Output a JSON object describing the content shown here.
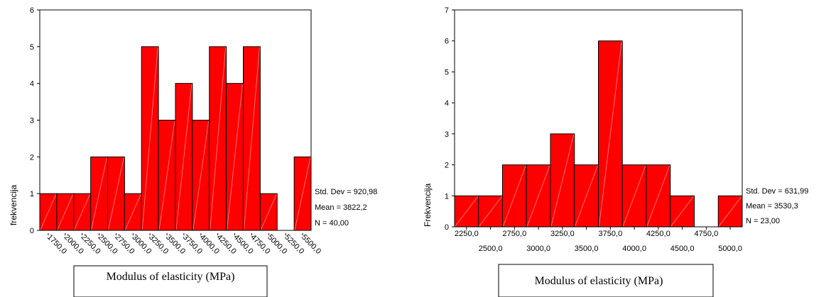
{
  "colors": {
    "bar_fill": "#ff0000",
    "bar_stroke": "#000000",
    "hatch": "#ff8a8a"
  },
  "chart_data": [
    {
      "type": "bar",
      "subtype": "histogram",
      "categories": [
        "1750,0",
        "2000,0",
        "2250,0",
        "2500,0",
        "2750,0",
        "3000,0",
        "3250,0",
        "3500,0",
        "3750,0",
        "4000,0",
        "4250,0",
        "4500,0",
        "4750,0",
        "5000,0",
        "5250,0",
        "5500,0"
      ],
      "values": [
        1,
        1,
        1,
        2,
        2,
        1,
        5,
        3,
        4,
        3,
        5,
        4,
        5,
        1,
        0,
        2
      ],
      "ylabel": "frekvencija",
      "xlabel": "Modulus of elasticity (MPa)",
      "ylim": [
        0,
        6
      ],
      "yticks": [
        "0",
        "1",
        "2",
        "3",
        "4",
        "5",
        "6"
      ],
      "xtick_rotation": "diagonal",
      "stats": [
        "Std. Dev = 920,98",
        "Mean = 3822,2",
        "N = 40,00"
      ]
    },
    {
      "type": "bar",
      "subtype": "histogram",
      "categories": [
        "2250,0",
        "2500,0",
        "2750,0",
        "3000,0",
        "3250,0",
        "3500,0",
        "3750,0",
        "4000,0",
        "4250,0",
        "4500,0",
        "4750,0",
        "5000,0"
      ],
      "values": [
        1,
        1,
        2,
        2,
        3,
        2,
        6,
        2,
        2,
        1,
        0,
        1
      ],
      "ylabel": "Frekvencija",
      "xlabel": "Modulus of elasticity  (MPa)",
      "ylim": [
        0,
        7
      ],
      "yticks": [
        "0",
        "1",
        "2",
        "3",
        "4",
        "5",
        "6",
        "7"
      ],
      "xtick_rotation": "staggered",
      "stats": [
        "Std. Dev = 631,99",
        "Mean = 3530,3",
        "N = 23,00"
      ]
    }
  ]
}
